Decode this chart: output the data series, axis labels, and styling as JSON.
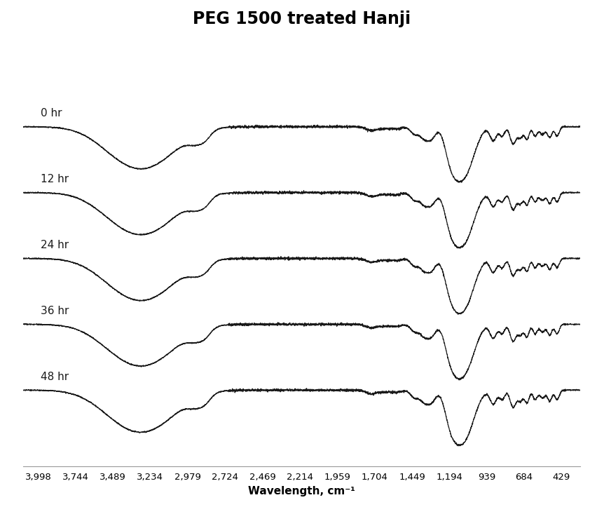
{
  "title": "PEG 1500 treated Hanji",
  "xlabel": "Wavelength, cm⁻¹",
  "x_tick_labels": [
    "3,998",
    "3,744",
    "3,489",
    "3,234",
    "2,979",
    "2,724",
    "2,469",
    "2,214",
    "1,959",
    "1,704",
    "1,449",
    "1,194",
    "939",
    "684",
    "429"
  ],
  "x_tick_values": [
    3998,
    3744,
    3489,
    3234,
    2979,
    2724,
    2469,
    2214,
    1959,
    1704,
    1449,
    1194,
    939,
    684,
    429
  ],
  "x_min": 4100,
  "x_max": 300,
  "labels": [
    "0 hr",
    "12 hr",
    "24 hr",
    "36 hr",
    "48 hr"
  ],
  "vertical_offsets": [
    2.6,
    1.95,
    1.3,
    0.65,
    0.0
  ],
  "line_color": "#1a1a1a",
  "background_color": "#ffffff",
  "title_fontsize": 17,
  "label_fontsize": 11,
  "tick_fontsize": 9.5,
  "linewidth": 0.9
}
